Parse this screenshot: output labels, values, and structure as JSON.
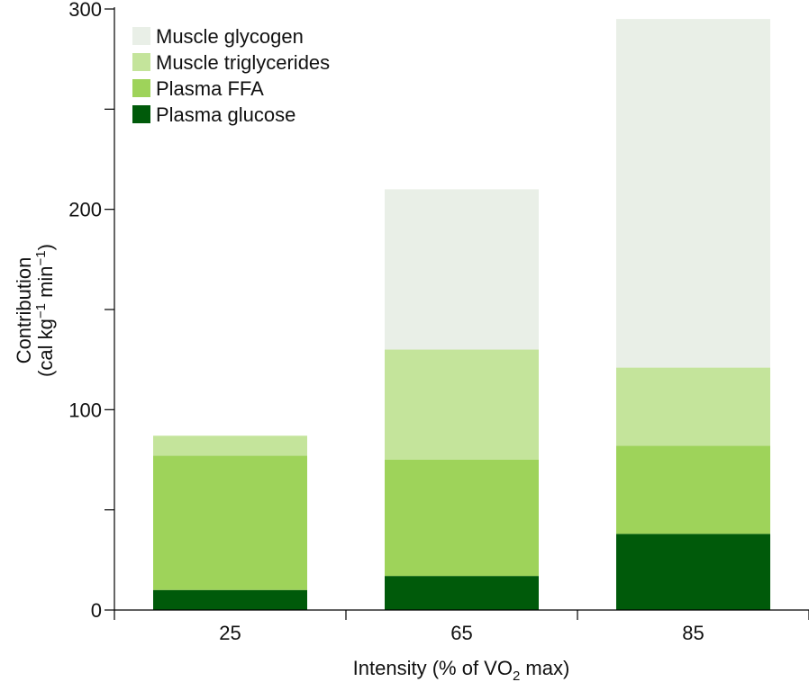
{
  "chart_data": {
    "type": "bar",
    "stacked": true,
    "categories": [
      "25",
      "65",
      "85"
    ],
    "series": [
      {
        "name": "Plasma glucose",
        "color": "#005a0a",
        "values": [
          10,
          17,
          38
        ]
      },
      {
        "name": "Plasma FFA",
        "color": "#9ed35a",
        "values": [
          67,
          58,
          44
        ]
      },
      {
        "name": "Muscle triglycerides",
        "color": "#c4e49b",
        "values": [
          10,
          55,
          39
        ]
      },
      {
        "name": "Muscle glycogen",
        "color": "#e9efe7",
        "values": [
          0,
          80,
          174
        ]
      }
    ],
    "legend_order": [
      "Muscle glycogen",
      "Muscle triglycerides",
      "Plasma FFA",
      "Plasma glucose"
    ],
    "ylim": [
      0,
      300
    ],
    "yticks_major": [
      0,
      100,
      200,
      300
    ],
    "yticks_minor": [
      50,
      150,
      250
    ],
    "xlabel": {
      "prefix": "Intensity (% of VO",
      "sub": "2",
      "suffix": " max)"
    },
    "ylabel": {
      "line1": "Contribution",
      "line2_prefix": "(cal kg",
      "sup1": "−1",
      "line2_mid": " min",
      "sup2": "−1",
      "line2_suffix": ")"
    },
    "legend_position": "top-left"
  }
}
